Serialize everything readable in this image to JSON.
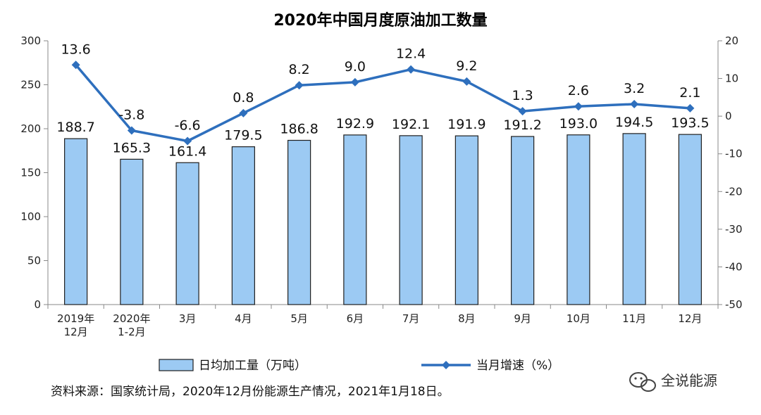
{
  "chart_data": {
    "type": "bar",
    "title": "2020年中国月度原油加工数量",
    "categories": [
      [
        "2019年",
        "12月"
      ],
      [
        "2020年",
        "1-2月"
      ],
      [
        "3月"
      ],
      [
        "4月"
      ],
      [
        "5月"
      ],
      [
        "6月"
      ],
      [
        "7月"
      ],
      [
        "8月"
      ],
      [
        "9月"
      ],
      [
        "10月"
      ],
      [
        "11月"
      ],
      [
        "12月"
      ]
    ],
    "series": [
      {
        "name": "日均加工量（万吨）",
        "kind": "bar",
        "axis": "left",
        "color": "#9ccaf3",
        "values": [
          188.7,
          165.3,
          161.4,
          179.5,
          186.8,
          192.9,
          192.1,
          191.9,
          191.2,
          193.0,
          194.5,
          193.5
        ]
      },
      {
        "name": "当月增速（%）",
        "kind": "line",
        "axis": "right",
        "color": "#2e6fbd",
        "values": [
          13.6,
          -3.8,
          -6.6,
          0.8,
          8.2,
          9.0,
          12.4,
          9.2,
          1.3,
          2.6,
          3.2,
          2.1
        ]
      }
    ],
    "bar_labels": [
      "188.7",
      "165.3",
      "161.4",
      "179.5",
      "186.8",
      "192.9",
      "192.1",
      "191.9",
      "191.2",
      "193.0",
      "194.5",
      "193.5"
    ],
    "line_labels": [
      "13.6",
      "-3.8",
      "-6.6",
      "0.8",
      "8.2",
      "9.0",
      "12.4",
      "9.2",
      "1.3",
      "2.6",
      "3.2",
      "2.1"
    ],
    "y_left": {
      "ylim": [
        0,
        300
      ],
      "ticks": [
        "0",
        "50",
        "100",
        "150",
        "200",
        "250",
        "300"
      ]
    },
    "y_right": {
      "ylim": [
        -50,
        20
      ],
      "ticks": [
        "-50",
        "-40",
        "-30",
        "-20",
        "-10",
        "0",
        "10",
        "20"
      ]
    },
    "grid": false,
    "legend": "bottom"
  },
  "source_note": "资料来源：国家统计局，2020年12月份能源生产情况，2021年1月18日。",
  "watermark": "全说能源",
  "colors": {
    "bar_fill": "#9ccaf3",
    "bar_stroke": "#1f1f1f",
    "line": "#2e6fbd",
    "axis": "#888888"
  }
}
